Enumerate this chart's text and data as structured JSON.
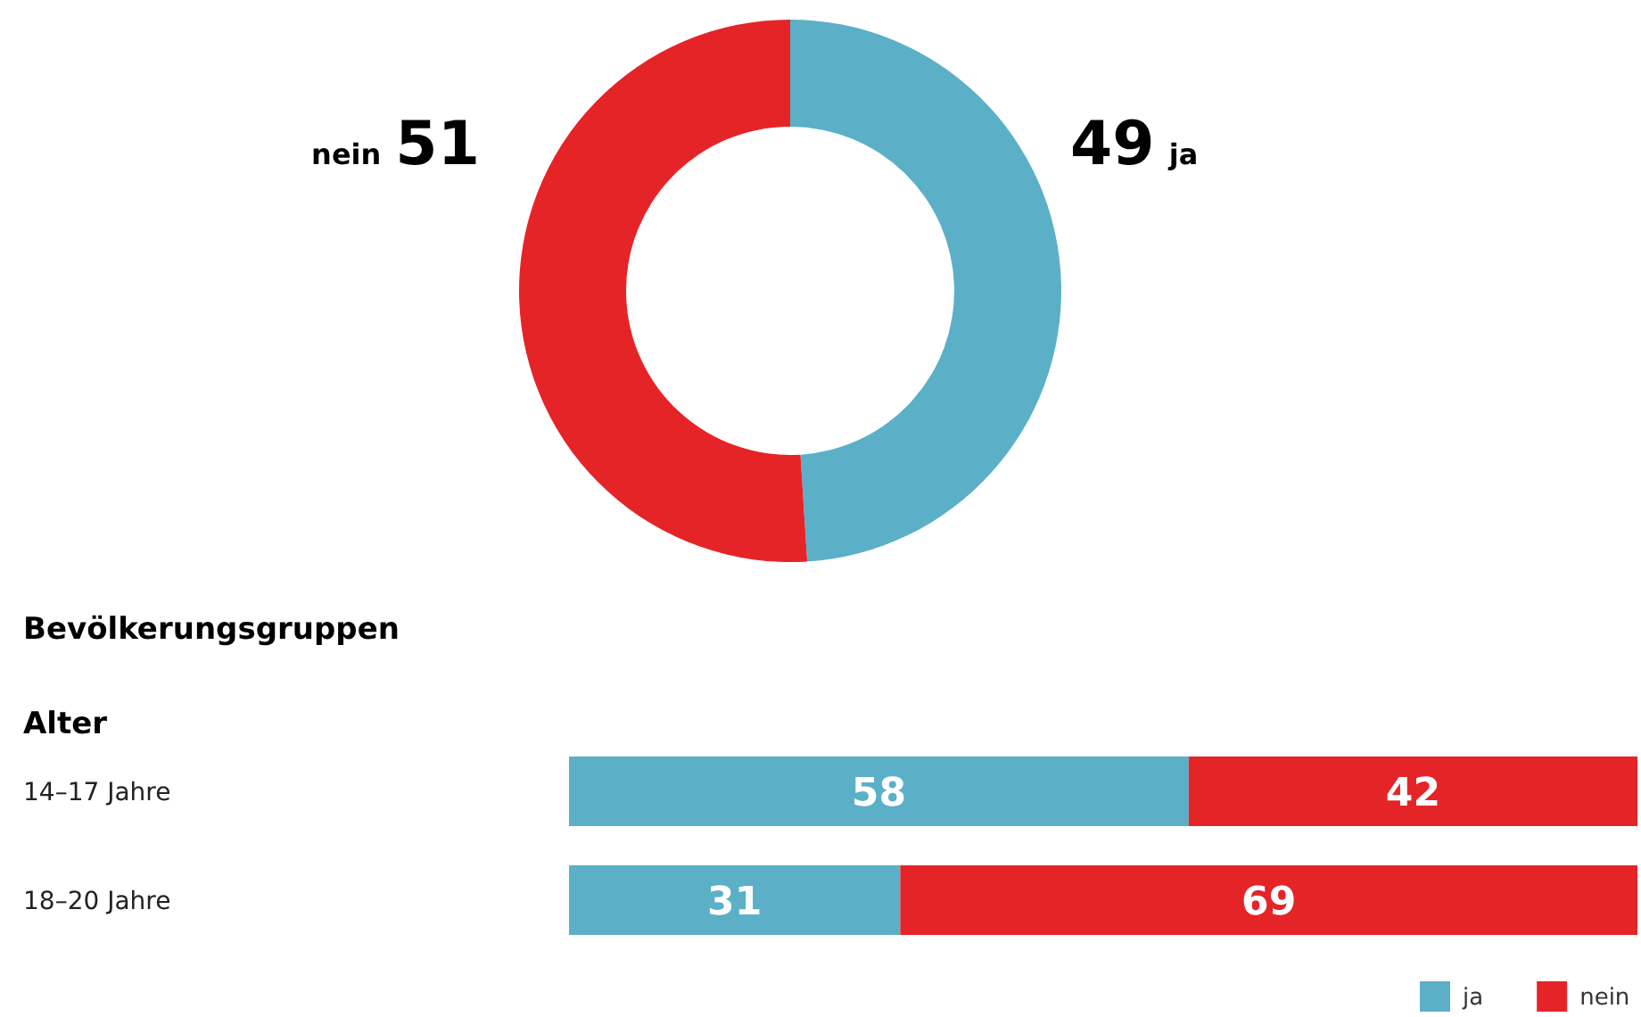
{
  "chart_data": [
    {
      "type": "donut",
      "categories": [
        "ja",
        "nein"
      ],
      "values": [
        49,
        51
      ],
      "colors": [
        "#5bb0c7",
        "#e52428"
      ],
      "data_labels": true
    },
    {
      "type": "bar",
      "orientation": "horizontal",
      "stacked": true,
      "title": "Bevölkerungsgruppen",
      "subtitle": "Alter",
      "categories": [
        "14–17 Jahre",
        "18–20 Jahre"
      ],
      "series": [
        {
          "name": "ja",
          "color": "#5bb0c7",
          "values": [
            58,
            31
          ]
        },
        {
          "name": "nein",
          "color": "#e52428",
          "values": [
            42,
            69
          ]
        }
      ],
      "data_labels": true,
      "legend": "bottom right"
    }
  ]
}
